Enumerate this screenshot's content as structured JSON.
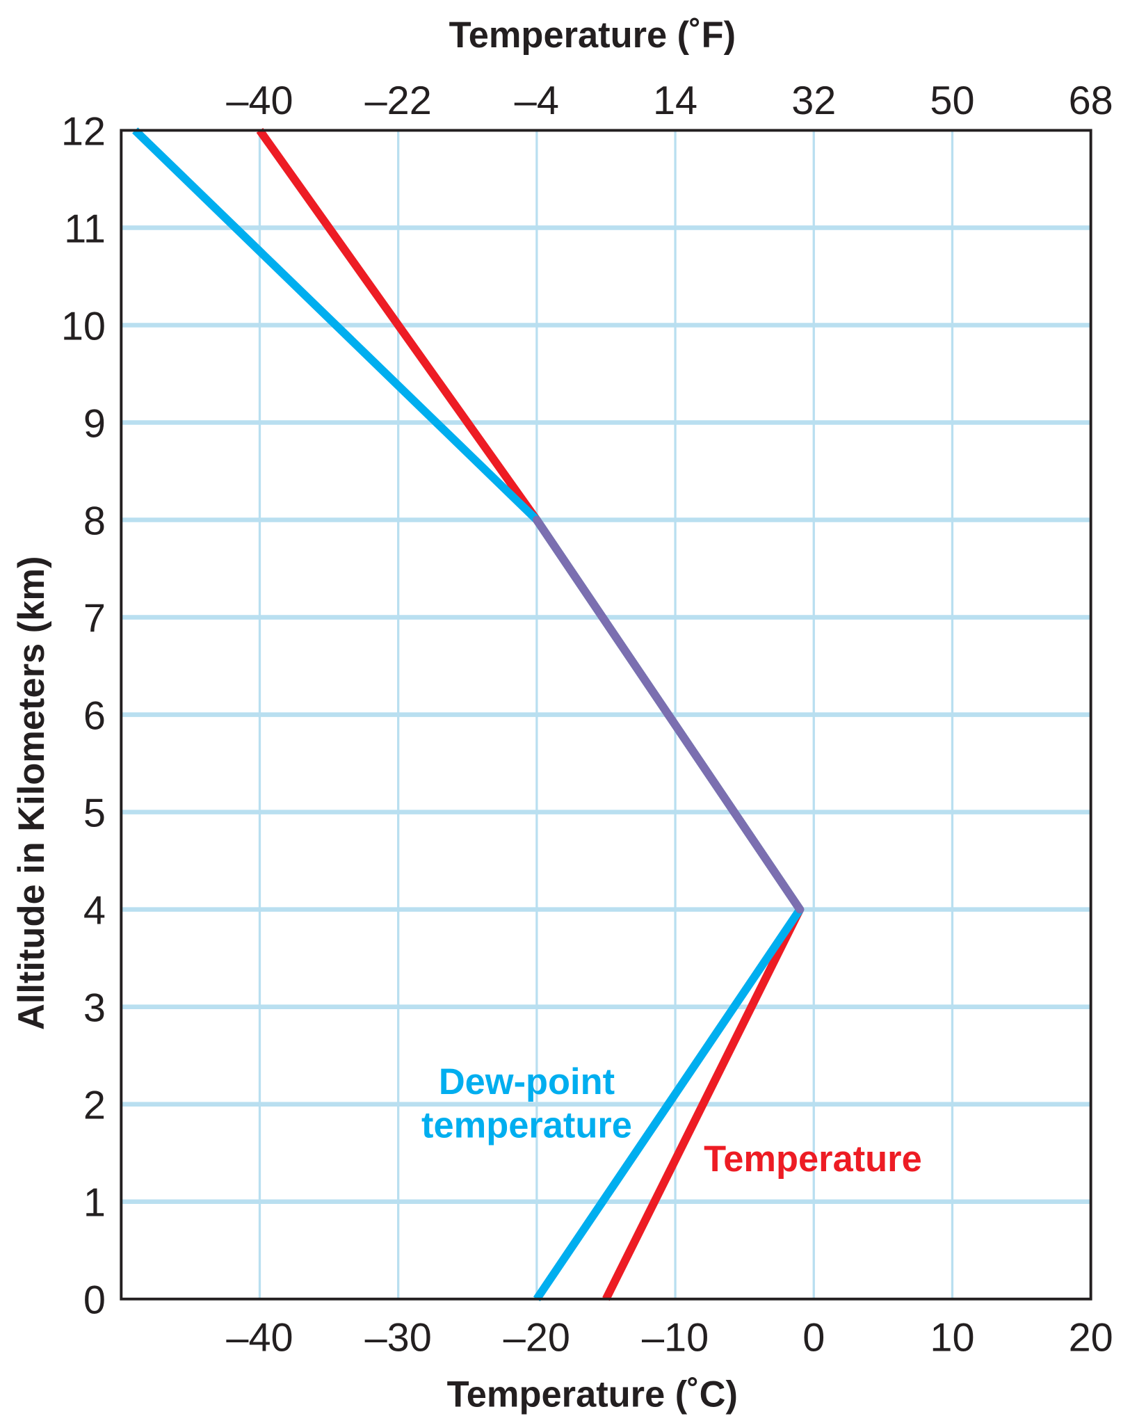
{
  "chart_data": {
    "type": "line",
    "title": "",
    "xlabel": "Temperature (˚C)",
    "x2label": "Temperature (˚F)",
    "ylabel": "Alltitude in Kilometers (km)",
    "xlim": [
      -50,
      20
    ],
    "ylim": [
      0,
      12
    ],
    "x_ticks": [
      -40,
      -30,
      -20,
      -10,
      0,
      10,
      20
    ],
    "x2_ticks": [
      -40,
      -22,
      -4,
      14,
      32,
      50,
      68
    ],
    "y_ticks": [
      0,
      1,
      2,
      3,
      4,
      5,
      6,
      7,
      8,
      9,
      10,
      11,
      12
    ],
    "grid": true,
    "grid_color": "#b9dff0",
    "overlap_color": "#7b6fb0",
    "series": [
      {
        "name": "Temperature",
        "color": "#ed1c24",
        "points": [
          [
            -15,
            0
          ],
          [
            -1,
            4
          ],
          [
            -20,
            8
          ],
          [
            -40,
            12
          ]
        ]
      },
      {
        "name_lines": [
          "Dew-point",
          "temperature"
        ],
        "color": "#00aeef",
        "points": [
          [
            -20,
            0
          ],
          [
            -1,
            4
          ],
          [
            -20,
            8
          ],
          [
            -49,
            12
          ]
        ]
      }
    ]
  }
}
